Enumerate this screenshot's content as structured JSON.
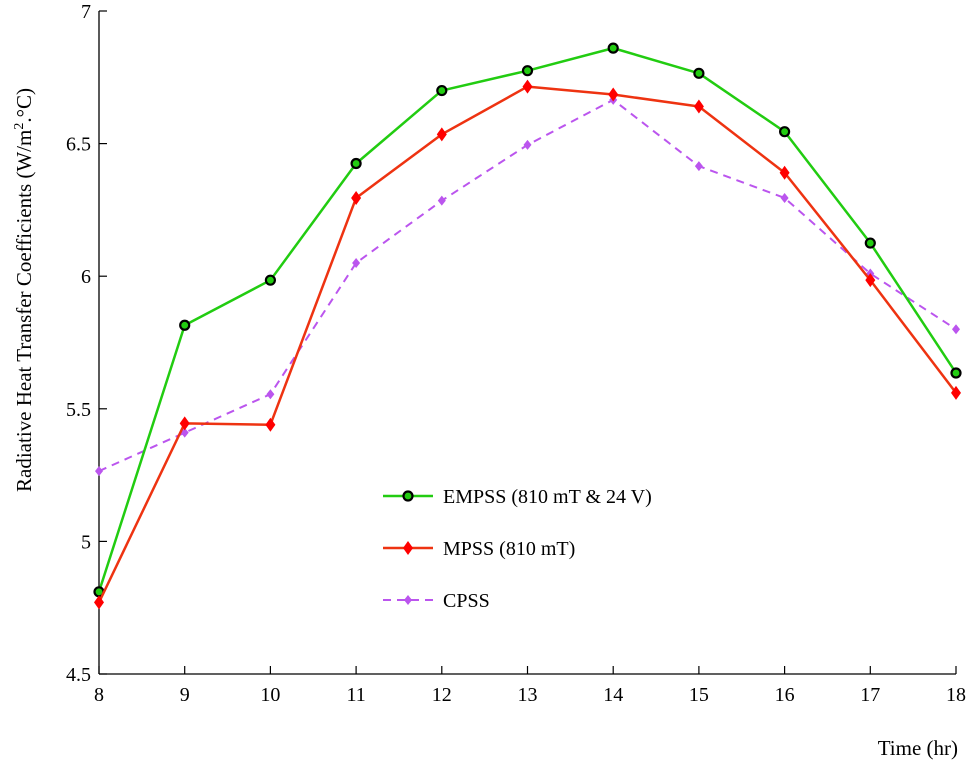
{
  "chart_data": {
    "type": "line",
    "title": "",
    "xlabel": "Time (hr)",
    "ylabel_main": "Radiative Heat Transfer Coefficients (W/m",
    "ylabel_sup": "2",
    "ylabel_end": ".°C)",
    "x": [
      8,
      9,
      10,
      11,
      12,
      13,
      14,
      15,
      16,
      17,
      18
    ],
    "xlim": [
      8,
      18
    ],
    "ylim": [
      4.5,
      7
    ],
    "xticks": [
      "8",
      "9",
      "10",
      "11",
      "12",
      "13",
      "14",
      "15",
      "16",
      "17",
      "18"
    ],
    "yticks": [
      "4.5",
      "5",
      "5.5",
      "6",
      "6.5",
      "7"
    ],
    "grid": false,
    "legend_position": "center-left",
    "series": [
      {
        "name": "EMPSS (810 mT & 24 V)",
        "color": "#22cc11",
        "marker": "circle-dot",
        "dash": "solid",
        "values": [
          4.81,
          5.815,
          5.985,
          6.425,
          6.7,
          6.775,
          6.86,
          6.765,
          6.545,
          6.125,
          5.635
        ]
      },
      {
        "name": "MPSS (810 mT)",
        "color": "#ee3311",
        "marker": "diamond",
        "marker_color": "#ff0000",
        "dash": "solid",
        "values": [
          4.77,
          5.445,
          5.44,
          6.295,
          6.535,
          6.715,
          6.685,
          6.64,
          6.39,
          5.985,
          5.56
        ]
      },
      {
        "name": "CPSS",
        "color": "#bb55ee",
        "marker": "diamond-small",
        "dash": "dashed",
        "values": [
          5.265,
          5.41,
          5.555,
          6.05,
          6.285,
          6.495,
          6.665,
          6.415,
          6.295,
          6.01,
          5.8
        ]
      }
    ]
  }
}
